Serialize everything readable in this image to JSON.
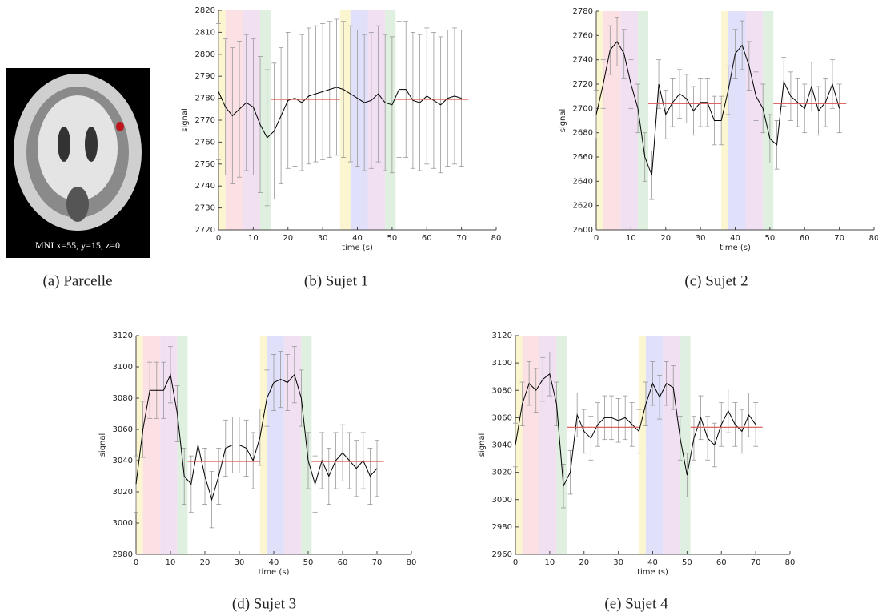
{
  "figure": {
    "image": {
      "label": "MNI x=55, y=15, z=0",
      "caption": "(a) Parcelle"
    }
  },
  "chart_data": [
    {
      "type": "line",
      "caption": "(b) Sujet 1",
      "xlabel": "time (s)",
      "ylabel": "signal",
      "x": [
        0,
        2,
        4,
        6,
        8,
        10,
        12,
        14,
        16,
        18,
        20,
        22,
        24,
        26,
        28,
        30,
        32,
        34,
        36,
        38,
        40,
        42,
        44,
        46,
        48,
        50,
        52,
        54,
        56,
        58,
        60,
        62,
        64,
        66,
        68,
        70
      ],
      "series": [
        {
          "color": "#000000",
          "error": 31,
          "values": [
            2783,
            2776,
            2772,
            2775,
            2778,
            2776,
            2768,
            2762,
            2765,
            2772,
            2779,
            2780,
            2778,
            2781,
            2782,
            2783,
            2784,
            2785,
            2784,
            2782,
            2780,
            2778,
            2779,
            2782,
            2778,
            2777,
            2784,
            2784,
            2779,
            2778,
            2781,
            2779,
            2777,
            2780,
            2781,
            2780
          ]
        }
      ],
      "xlim": [
        0,
        80
      ],
      "ylim": [
        2720,
        2820
      ],
      "xticks": [
        0,
        10,
        20,
        30,
        40,
        50,
        60,
        70,
        80
      ],
      "yticks": [
        2720,
        2730,
        2740,
        2750,
        2760,
        2770,
        2780,
        2790,
        2800,
        2810,
        2820
      ],
      "bands": [
        {
          "x": [
            0,
            2
          ],
          "color": "#fbf6d0"
        },
        {
          "x": [
            2,
            7
          ],
          "color": "#fbe0e4"
        },
        {
          "x": [
            7,
            12
          ],
          "color": "#f1e0f2"
        },
        {
          "x": [
            12,
            15
          ],
          "color": "#e0f0e0"
        },
        {
          "x": [
            35,
            38
          ],
          "color": "#fbf6d0"
        },
        {
          "x": [
            38,
            43
          ],
          "color": "#e0e0fb"
        },
        {
          "x": [
            43,
            48
          ],
          "color": "#f1e0f2"
        },
        {
          "x": [
            48,
            51
          ],
          "color": "#e0f0e0"
        }
      ],
      "baselines": [
        {
          "x": [
            15,
            35
          ],
          "y": 2779.5
        },
        {
          "x": [
            51,
            72
          ],
          "y": 2779.5
        }
      ],
      "baseline_color": "#d9534f"
    },
    {
      "type": "line",
      "caption": "(c) Sujet 2",
      "xlabel": "time (s)",
      "ylabel": "signal",
      "x": [
        0,
        2,
        4,
        6,
        8,
        10,
        12,
        14,
        16,
        18,
        20,
        22,
        24,
        26,
        28,
        30,
        32,
        34,
        36,
        38,
        40,
        42,
        44,
        46,
        48,
        50,
        52,
        54,
        56,
        58,
        60,
        62,
        64,
        66,
        68,
        70
      ],
      "series": [
        {
          "color": "#000000",
          "error": 20,
          "values": [
            2695,
            2720,
            2748,
            2755,
            2745,
            2720,
            2700,
            2660,
            2645,
            2720,
            2695,
            2705,
            2712,
            2708,
            2698,
            2705,
            2705,
            2690,
            2690,
            2715,
            2745,
            2752,
            2735,
            2710,
            2700,
            2675,
            2670,
            2722,
            2710,
            2705,
            2700,
            2718,
            2698,
            2705,
            2720,
            2700
          ]
        }
      ],
      "xlim": [
        0,
        80
      ],
      "ylim": [
        2600,
        2780
      ],
      "xticks": [
        0,
        10,
        20,
        30,
        40,
        50,
        60,
        70,
        80
      ],
      "yticks": [
        2600,
        2620,
        2640,
        2660,
        2680,
        2700,
        2720,
        2740,
        2760,
        2780
      ],
      "bands": [
        {
          "x": [
            0,
            2
          ],
          "color": "#fbf6d0"
        },
        {
          "x": [
            2,
            7
          ],
          "color": "#fbe0e4"
        },
        {
          "x": [
            7,
            12
          ],
          "color": "#f1e0f2"
        },
        {
          "x": [
            12,
            15
          ],
          "color": "#e0f0e0"
        },
        {
          "x": [
            36,
            38
          ],
          "color": "#fbf6d0"
        },
        {
          "x": [
            38,
            43
          ],
          "color": "#e0e0fb"
        },
        {
          "x": [
            43,
            48
          ],
          "color": "#f1e0f2"
        },
        {
          "x": [
            48,
            51
          ],
          "color": "#e0f0e0"
        }
      ],
      "baselines": [
        {
          "x": [
            15,
            36
          ],
          "y": 2704
        },
        {
          "x": [
            51,
            72
          ],
          "y": 2704
        }
      ],
      "baseline_color": "#d9534f"
    },
    {
      "type": "line",
      "caption": "(d) Sujet 3",
      "xlabel": "time (s)",
      "ylabel": "signal",
      "x": [
        0,
        2,
        4,
        6,
        8,
        10,
        12,
        14,
        16,
        18,
        20,
        22,
        24,
        26,
        28,
        30,
        32,
        34,
        36,
        38,
        40,
        42,
        44,
        46,
        48,
        50,
        52,
        54,
        56,
        58,
        60,
        62,
        64,
        66,
        68,
        70
      ],
      "series": [
        {
          "color": "#000000",
          "error": 18,
          "values": [
            3025,
            3060,
            3085,
            3085,
            3085,
            3095,
            3070,
            3030,
            3025,
            3050,
            3030,
            3015,
            3030,
            3048,
            3050,
            3050,
            3048,
            3040,
            3055,
            3080,
            3090,
            3092,
            3090,
            3095,
            3080,
            3040,
            3025,
            3040,
            3030,
            3040,
            3045,
            3040,
            3035,
            3040,
            3030,
            3035
          ]
        }
      ],
      "xlim": [
        0,
        80
      ],
      "ylim": [
        2980,
        3120
      ],
      "xticks": [
        0,
        10,
        20,
        30,
        40,
        50,
        60,
        70,
        80
      ],
      "yticks": [
        2980,
        3000,
        3020,
        3040,
        3060,
        3080,
        3100,
        3120
      ],
      "bands": [
        {
          "x": [
            0,
            2
          ],
          "color": "#fbf6d0"
        },
        {
          "x": [
            2,
            7
          ],
          "color": "#fbe0e4"
        },
        {
          "x": [
            7,
            12
          ],
          "color": "#f1e0f2"
        },
        {
          "x": [
            12,
            15
          ],
          "color": "#e0f0e0"
        },
        {
          "x": [
            36,
            38
          ],
          "color": "#fbf6d0"
        },
        {
          "x": [
            38,
            43
          ],
          "color": "#e0e0fb"
        },
        {
          "x": [
            43,
            48
          ],
          "color": "#f1e0f2"
        },
        {
          "x": [
            48,
            51
          ],
          "color": "#e0f0e0"
        }
      ],
      "baselines": [
        {
          "x": [
            15,
            36
          ],
          "y": 3039.5
        },
        {
          "x": [
            51,
            72
          ],
          "y": 3039.5
        }
      ],
      "baseline_color": "#d9534f"
    },
    {
      "type": "line",
      "caption": "(e) Sujet 4",
      "xlabel": "time (s)",
      "ylabel": "signal",
      "x": [
        0,
        2,
        4,
        6,
        8,
        10,
        12,
        14,
        16,
        18,
        20,
        22,
        24,
        26,
        28,
        30,
        32,
        34,
        36,
        38,
        40,
        42,
        44,
        46,
        48,
        50,
        52,
        54,
        56,
        58,
        60,
        62,
        64,
        66,
        68,
        70
      ],
      "series": [
        {
          "color": "#000000",
          "error": 16,
          "values": [
            3040,
            3070,
            3085,
            3080,
            3088,
            3092,
            3070,
            3010,
            3020,
            3062,
            3050,
            3045,
            3055,
            3060,
            3060,
            3058,
            3060,
            3055,
            3050,
            3070,
            3085,
            3075,
            3085,
            3082,
            3045,
            3018,
            3045,
            3060,
            3045,
            3040,
            3055,
            3065,
            3055,
            3050,
            3062,
            3055
          ]
        }
      ],
      "xlim": [
        0,
        80
      ],
      "ylim": [
        2960,
        3120
      ],
      "xticks": [
        0,
        10,
        20,
        30,
        40,
        50,
        60,
        70,
        80
      ],
      "yticks": [
        2960,
        2980,
        3000,
        3020,
        3040,
        3060,
        3080,
        3100,
        3120
      ],
      "bands": [
        {
          "x": [
            0,
            2
          ],
          "color": "#fbf6d0"
        },
        {
          "x": [
            2,
            7
          ],
          "color": "#fbe0e4"
        },
        {
          "x": [
            7,
            12
          ],
          "color": "#f1e0f2"
        },
        {
          "x": [
            12,
            15
          ],
          "color": "#e0f0e0"
        },
        {
          "x": [
            36,
            38
          ],
          "color": "#fbf6d0"
        },
        {
          "x": [
            38,
            43
          ],
          "color": "#e0e0fb"
        },
        {
          "x": [
            43,
            48
          ],
          "color": "#f1e0f2"
        },
        {
          "x": [
            48,
            51
          ],
          "color": "#e0f0e0"
        }
      ],
      "baselines": [
        {
          "x": [
            15,
            36
          ],
          "y": 3053
        },
        {
          "x": [
            51,
            72
          ],
          "y": 3053
        }
      ],
      "baseline_color": "#d9534f"
    }
  ]
}
